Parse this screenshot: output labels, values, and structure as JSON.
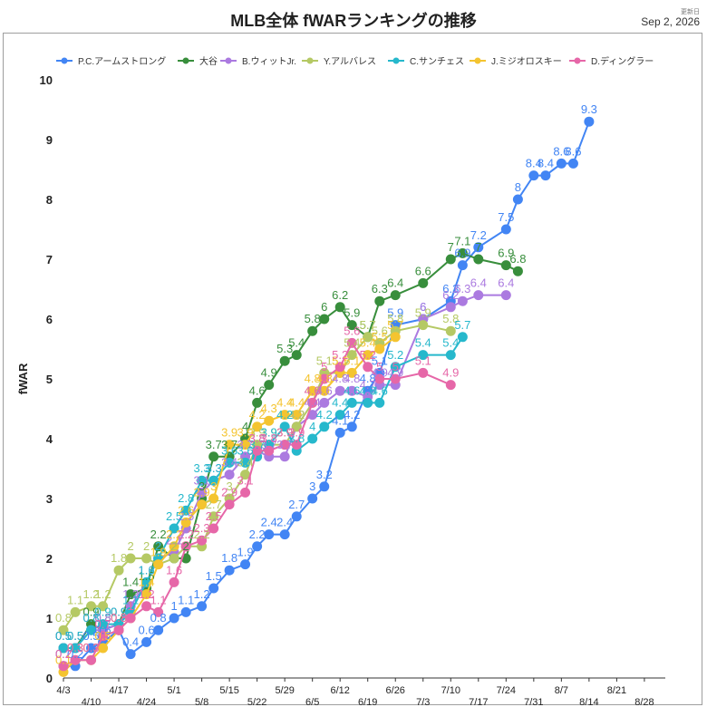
{
  "header": {
    "updated_caption": "更新日",
    "updated_date": "Sep 2, 2026"
  },
  "chart_data": {
    "type": "line",
    "title": "MLB全体 fWARランキングの推移",
    "xlabel": "",
    "ylabel": "fWAR",
    "ylim": [
      0,
      10
    ],
    "y_ticks": [
      0,
      1,
      2,
      3,
      4,
      5,
      6,
      7,
      8,
      9,
      10
    ],
    "grid": false,
    "legend_position": "top",
    "x_tick_labels": [
      "4/3",
      "4/10",
      "4/17",
      "4/24",
      "5/1",
      "5/8",
      "5/15",
      "5/22",
      "5/29",
      "6/5",
      "6/12",
      "6/19",
      "6/26",
      "7/3",
      "7/10",
      "7/17",
      "7/24",
      "7/31",
      "8/7",
      "8/14",
      "8/21",
      "8/28"
    ],
    "x": [
      "4/3",
      "4/6",
      "4/10",
      "4/13",
      "4/17",
      "4/20",
      "4/24",
      "4/27",
      "5/1",
      "5/4",
      "5/8",
      "5/11",
      "5/15",
      "5/19",
      "5/22",
      "5/25",
      "5/29",
      "6/1",
      "6/5",
      "6/8",
      "6/12",
      "6/15",
      "6/19",
      "6/22",
      "6/26",
      "7/3",
      "7/10",
      "7/13",
      "7/17",
      "7/24",
      "7/27",
      "7/31",
      "8/3",
      "8/7",
      "8/10",
      "8/14",
      "8/21",
      "8/24",
      "8/26",
      "8/28",
      "8/31"
    ],
    "series": [
      {
        "name": "P.C.アームストロング",
        "color": "#4285f4",
        "values": [
          0.2,
          0.2,
          0.5,
          0.6,
          0.8,
          0.4,
          0.6,
          0.8,
          1.0,
          1.1,
          1.2,
          1.5,
          1.8,
          1.9,
          2.2,
          2.4,
          2.4,
          2.7,
          3.0,
          3.2,
          4.1,
          4.2,
          4.8,
          5.1,
          5.9,
          6.0,
          6.3,
          6.9,
          7.2,
          7.5,
          8.0,
          8.4,
          8.4,
          8.6,
          8.6,
          9.3,
          null,
          null,
          null,
          null,
          null
        ]
      },
      {
        "name": "大谷",
        "color": "#388e3c",
        "values": [
          0.5,
          0.5,
          0.9,
          0.8,
          0.9,
          1.4,
          1.5,
          2.2,
          2.0,
          2.0,
          3.0,
          3.7,
          3.7,
          4.0,
          4.6,
          4.9,
          5.3,
          5.4,
          5.8,
          6.0,
          6.2,
          5.9,
          5.7,
          6.3,
          6.4,
          6.6,
          7.0,
          7.1,
          7.0,
          6.9,
          6.8,
          null,
          null,
          null,
          null,
          null,
          null,
          null,
          null,
          null,
          null
        ]
      },
      {
        "name": "B.ウィットJr.",
        "color": "#ab7ae0",
        "values": [
          0.5,
          0.5,
          0.8,
          0.8,
          0.9,
          1.2,
          1.6,
          2.0,
          2.1,
          2.5,
          3.1,
          3.3,
          3.4,
          3.7,
          3.8,
          3.7,
          3.7,
          4.2,
          4.4,
          4.6,
          4.8,
          4.8,
          4.7,
          4.9,
          4.9,
          6.0,
          6.2,
          6.3,
          6.4,
          6.4,
          null,
          null,
          null,
          null,
          null,
          null,
          null,
          null,
          null,
          null,
          null
        ]
      },
      {
        "name": "Y.アルバレス",
        "color": "#b5c964",
        "values": [
          0.8,
          1.1,
          1.2,
          1.2,
          1.8,
          2.0,
          2.0,
          1.9,
          2.0,
          2.2,
          2.2,
          2.7,
          3.0,
          3.4,
          3.9,
          3.9,
          3.9,
          4.2,
          4.6,
          5.1,
          5.1,
          5.4,
          5.7,
          5.6,
          5.8,
          5.9,
          5.8,
          null,
          null,
          null,
          null,
          null,
          null,
          null,
          null,
          null,
          null,
          null,
          null,
          null,
          null
        ]
      },
      {
        "name": "C.サンチェス",
        "color": "#26b8cc",
        "values": [
          0.5,
          0.5,
          0.8,
          0.9,
          0.9,
          1.1,
          1.6,
          2.0,
          2.5,
          2.8,
          3.3,
          3.3,
          3.6,
          3.6,
          3.7,
          3.9,
          4.2,
          3.8,
          4.0,
          4.2,
          4.4,
          4.6,
          4.6,
          4.6,
          5.2,
          5.4,
          5.4,
          5.7,
          null,
          null,
          null,
          null,
          null,
          null,
          null,
          null,
          null,
          null,
          null,
          null,
          null
        ]
      },
      {
        "name": "J.ミジオロスキー",
        "color": "#f4c430",
        "values": [
          0.1,
          0.3,
          0.3,
          0.5,
          0.8,
          1.0,
          1.4,
          1.9,
          2.2,
          2.6,
          2.9,
          3.0,
          3.9,
          3.9,
          4.2,
          4.3,
          4.4,
          4.4,
          4.8,
          4.8,
          5.1,
          5.1,
          5.4,
          5.5,
          5.7,
          null,
          null,
          null,
          null,
          null,
          null,
          null,
          null,
          null,
          null,
          null,
          null,
          null,
          null,
          null,
          null
        ]
      },
      {
        "name": "D.ディングラー",
        "color": "#e667a8",
        "values": [
          0.2,
          0.3,
          0.3,
          0.7,
          0.8,
          1.0,
          1.2,
          1.1,
          1.6,
          2.2,
          2.3,
          2.5,
          2.9,
          3.1,
          3.8,
          3.8,
          3.9,
          3.9,
          4.6,
          5.0,
          5.2,
          5.6,
          5.2,
          5.0,
          5.0,
          5.1,
          4.9,
          null,
          null,
          null,
          null,
          null,
          null,
          null,
          null,
          null,
          null,
          null,
          null,
          null,
          null
        ]
      }
    ]
  }
}
